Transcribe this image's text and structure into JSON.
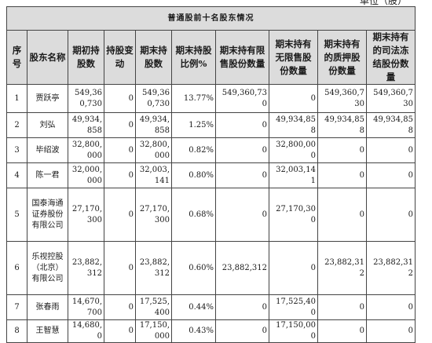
{
  "unit_label": "单位（股）",
  "table_title": "普通股前十名股东情况",
  "columns": [
    "序号",
    "股东名称",
    "期初持股数",
    "持股变动",
    "期末持股数",
    "期末持股比例%",
    "期末持有限售股份数量",
    "期末持有无限售股份数量",
    "期末持有的质押股份数量",
    "期末持有的司法冻结股份数量"
  ],
  "rows": [
    {
      "no": "1",
      "name": "贾跃亭",
      "begin": "549,360,730",
      "change": "0",
      "end": "549,360,730",
      "ratio": "13.77%",
      "restricted": "549,360,730",
      "unrestricted": "0",
      "pledged": "549,360,730",
      "frozen": "549,360,730"
    },
    {
      "no": "2",
      "name": "刘弘",
      "begin": "49,934,858",
      "change": "0",
      "end": "49,934,858",
      "ratio": "1.25%",
      "restricted": "0",
      "unrestricted": "49,934,858",
      "pledged": "49,934,858",
      "frozen": "49,934,858"
    },
    {
      "no": "3",
      "name": "毕绍波",
      "begin": "32,800,000",
      "change": "0",
      "end": "32,800,000",
      "ratio": "0.82%",
      "restricted": "0",
      "unrestricted": "32,800,000",
      "pledged": "0",
      "frozen": "0"
    },
    {
      "no": "4",
      "name": "陈一君",
      "begin": "32,000,000",
      "change": "0",
      "end": "32,003,141",
      "ratio": "0.80%",
      "restricted": "0",
      "unrestricted": "32,003,141",
      "pledged": "0",
      "frozen": "0"
    },
    {
      "no": "5",
      "name": "国泰海通证券股份有限公司",
      "begin": "27,170,300",
      "change": "0",
      "end": "27,170,300",
      "ratio": "0.68%",
      "restricted": "0",
      "unrestricted": "27,170,300",
      "pledged": "0",
      "frozen": "0"
    },
    {
      "no": "6",
      "name": "乐视控股（北京）有限公司",
      "begin": "23,882,312",
      "change": "0",
      "end": "23,882,312",
      "ratio": "0.60%",
      "restricted": "23,882,312",
      "unrestricted": "0",
      "pledged": "23,882,312",
      "frozen": "23,882,312"
    },
    {
      "no": "7",
      "name": "张春雨",
      "begin": "14,670,700",
      "change": "0",
      "end": "17,525,400",
      "ratio": "0.44%",
      "restricted": "0",
      "unrestricted": "17,525,400",
      "pledged": "0",
      "frozen": "0"
    },
    {
      "no": "8",
      "name": "王智慧",
      "begin": "14,680,0",
      "change": "0",
      "end": "17,150,000",
      "ratio": "0.43%",
      "restricted": "0",
      "unrestricted": "17,150,000",
      "pledged": "0",
      "frozen": "0"
    }
  ]
}
